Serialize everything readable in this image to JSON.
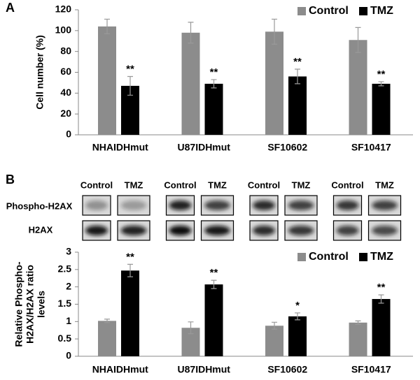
{
  "panel_labels": [
    "A",
    "B"
  ],
  "blot": {
    "lanes": [
      "Control",
      "TMZ",
      "Control",
      "TMZ",
      "Control",
      "TMZ",
      "Control",
      "TMZ"
    ],
    "rows": [
      "Phospho-H2AX",
      "H2AX"
    ]
  },
  "chart_data": [
    {
      "type": "bar",
      "ylabel": [
        "Cell number (%)"
      ],
      "categories": [
        "NHAIDHmut",
        "U87IDHmut",
        "SF10602",
        "SF10417"
      ],
      "series": [
        {
          "name": "Control",
          "color": "#8c8c8c",
          "values": [
            104,
            98,
            99,
            91
          ],
          "errors": [
            7,
            10,
            12,
            12
          ]
        },
        {
          "name": "TMZ",
          "color": "#000000",
          "values": [
            47,
            49,
            56,
            49
          ],
          "errors": [
            9,
            4,
            7,
            2
          ],
          "annotations": [
            "**",
            "**",
            "**",
            "**"
          ]
        }
      ],
      "ylim": [
        0,
        120
      ],
      "yticks": [
        0,
        20,
        40,
        60,
        80,
        100,
        120
      ],
      "legend": "upper right"
    },
    {
      "type": "bar",
      "ylabel": [
        "Relative Phospho-",
        "H2AX/H2AX ratio",
        "levels"
      ],
      "categories": [
        "NHAIDHmut",
        "U87IDHmut",
        "SF10602",
        "SF10417"
      ],
      "series": [
        {
          "name": "Control",
          "color": "#8c8c8c",
          "values": [
            1.02,
            0.82,
            0.88,
            0.97
          ],
          "errors": [
            0.05,
            0.17,
            0.1,
            0.05
          ]
        },
        {
          "name": "TMZ",
          "color": "#000000",
          "values": [
            2.47,
            2.07,
            1.15,
            1.65
          ],
          "errors": [
            0.18,
            0.12,
            0.1,
            0.12
          ],
          "annotations": [
            "**",
            "**",
            "*",
            "**"
          ]
        }
      ],
      "ylim": [
        0,
        3
      ],
      "yticks": [
        0,
        0.5,
        1,
        1.5,
        2,
        2.5,
        3
      ],
      "legend": "upper right"
    }
  ]
}
